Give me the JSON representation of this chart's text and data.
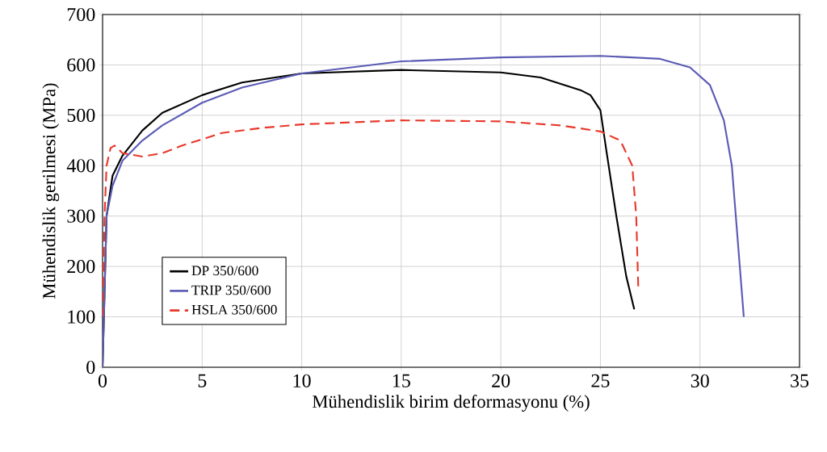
{
  "chart_data": {
    "type": "line",
    "xlabel": "Mühendislik birim deformasyonu (%)",
    "ylabel": "Mühendislik gerilmesi (MPa)",
    "xlim": [
      0,
      35
    ],
    "ylim": [
      0,
      700
    ],
    "xticks": [
      0,
      5,
      10,
      15,
      20,
      25,
      30,
      35
    ],
    "yticks": [
      0,
      100,
      200,
      300,
      400,
      500,
      600,
      700
    ],
    "grid": true,
    "legend": "bottom left",
    "marker": "none",
    "series": [
      {
        "name": "DP 350/600",
        "color": "#000000",
        "line_style": "solid",
        "x": [
          0,
          0.1,
          0.2,
          0.5,
          1,
          2,
          3,
          5,
          7,
          10,
          15,
          20,
          22,
          24,
          24.5,
          25,
          25.3,
          25.8,
          26.3,
          26.7
        ],
        "values": [
          0,
          150,
          300,
          380,
          420,
          470,
          505,
          540,
          565,
          583,
          590,
          585,
          575,
          550,
          540,
          510,
          430,
          300,
          180,
          115
        ]
      },
      {
        "name": "TRIP 350/600",
        "color": "#5b5bb5",
        "line_style": "solid",
        "x": [
          0,
          0.1,
          0.2,
          0.5,
          1,
          2,
          3,
          5,
          7,
          10,
          15,
          20,
          25,
          28,
          29.5,
          30.5,
          31.2,
          31.6,
          31.8,
          32,
          32.2
        ],
        "values": [
          0,
          150,
          300,
          360,
          410,
          450,
          480,
          525,
          555,
          583,
          607,
          615,
          618,
          612,
          595,
          560,
          490,
          400,
          300,
          200,
          100
        ]
      },
      {
        "name": "HSLA 350/600",
        "color": "#e8382b",
        "line_style": "dashed",
        "x": [
          0,
          0.1,
          0.2,
          0.4,
          0.6,
          1,
          2,
          3,
          4,
          6,
          8,
          10,
          15,
          20,
          23,
          25,
          26,
          26.6,
          26.8,
          26.9
        ],
        "values": [
          100,
          300,
          400,
          435,
          440,
          425,
          418,
          425,
          440,
          465,
          475,
          482,
          490,
          488,
          480,
          468,
          450,
          400,
          300,
          160
        ]
      }
    ]
  }
}
